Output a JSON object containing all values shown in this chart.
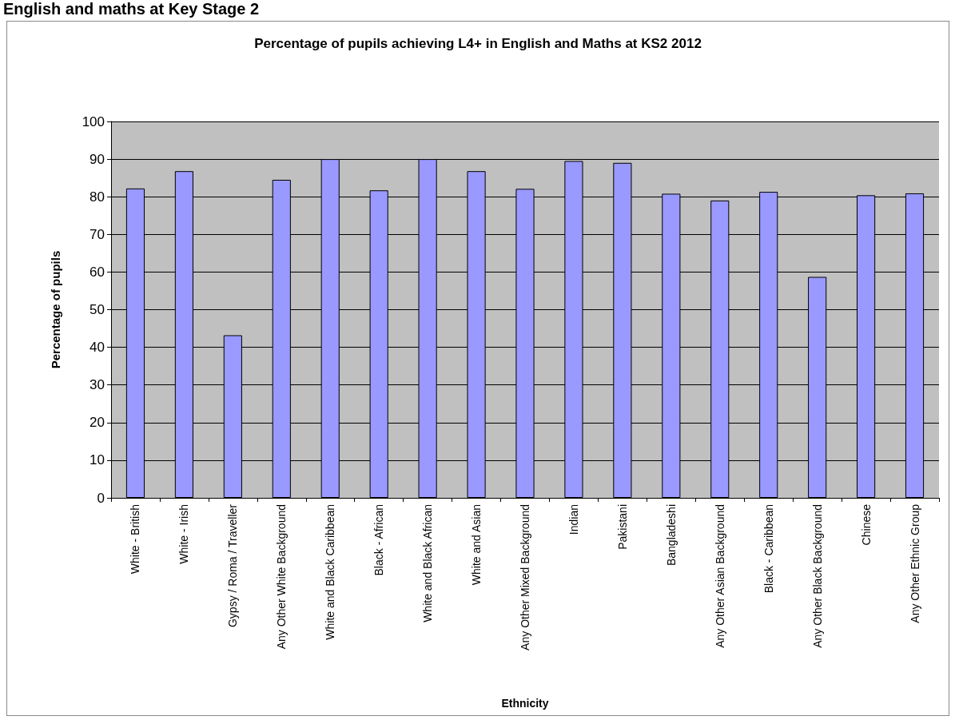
{
  "chart_data": {
    "type": "bar",
    "title": "English and maths at Key Stage 2",
    "subtitle": "Percentage of pupils achieving L4+ in English and Maths at KS2 2012",
    "xlabel": "Ethnicity",
    "ylabel": "Percentage of pupils",
    "categories": [
      "White - British",
      "White - Irish",
      "Gypsy / Roma / Traveller",
      "Any Other White Background",
      "White and Black Caribbean",
      "Black - African",
      "White and Black African",
      "White and Asian",
      "Any Other Mixed Background",
      "Indian",
      "Pakistani",
      "Bangladeshi",
      "Any Other Asian Background",
      "Black - Caribbean",
      "Any Other Black Background",
      "Chinese",
      "Any Other Ethnic Group"
    ],
    "values": [
      82.2,
      86.8,
      43.2,
      84.5,
      90,
      81.7,
      90,
      86.8,
      82.1,
      89.5,
      89,
      80.8,
      79,
      81.3,
      58.7,
      80.4,
      80.9
    ],
    "color": "#9999ff",
    "ylim": [
      0,
      100
    ],
    "yticks": [
      0,
      10,
      20,
      30,
      40,
      50,
      60,
      70,
      80,
      90,
      100
    ],
    "grid": "y"
  }
}
